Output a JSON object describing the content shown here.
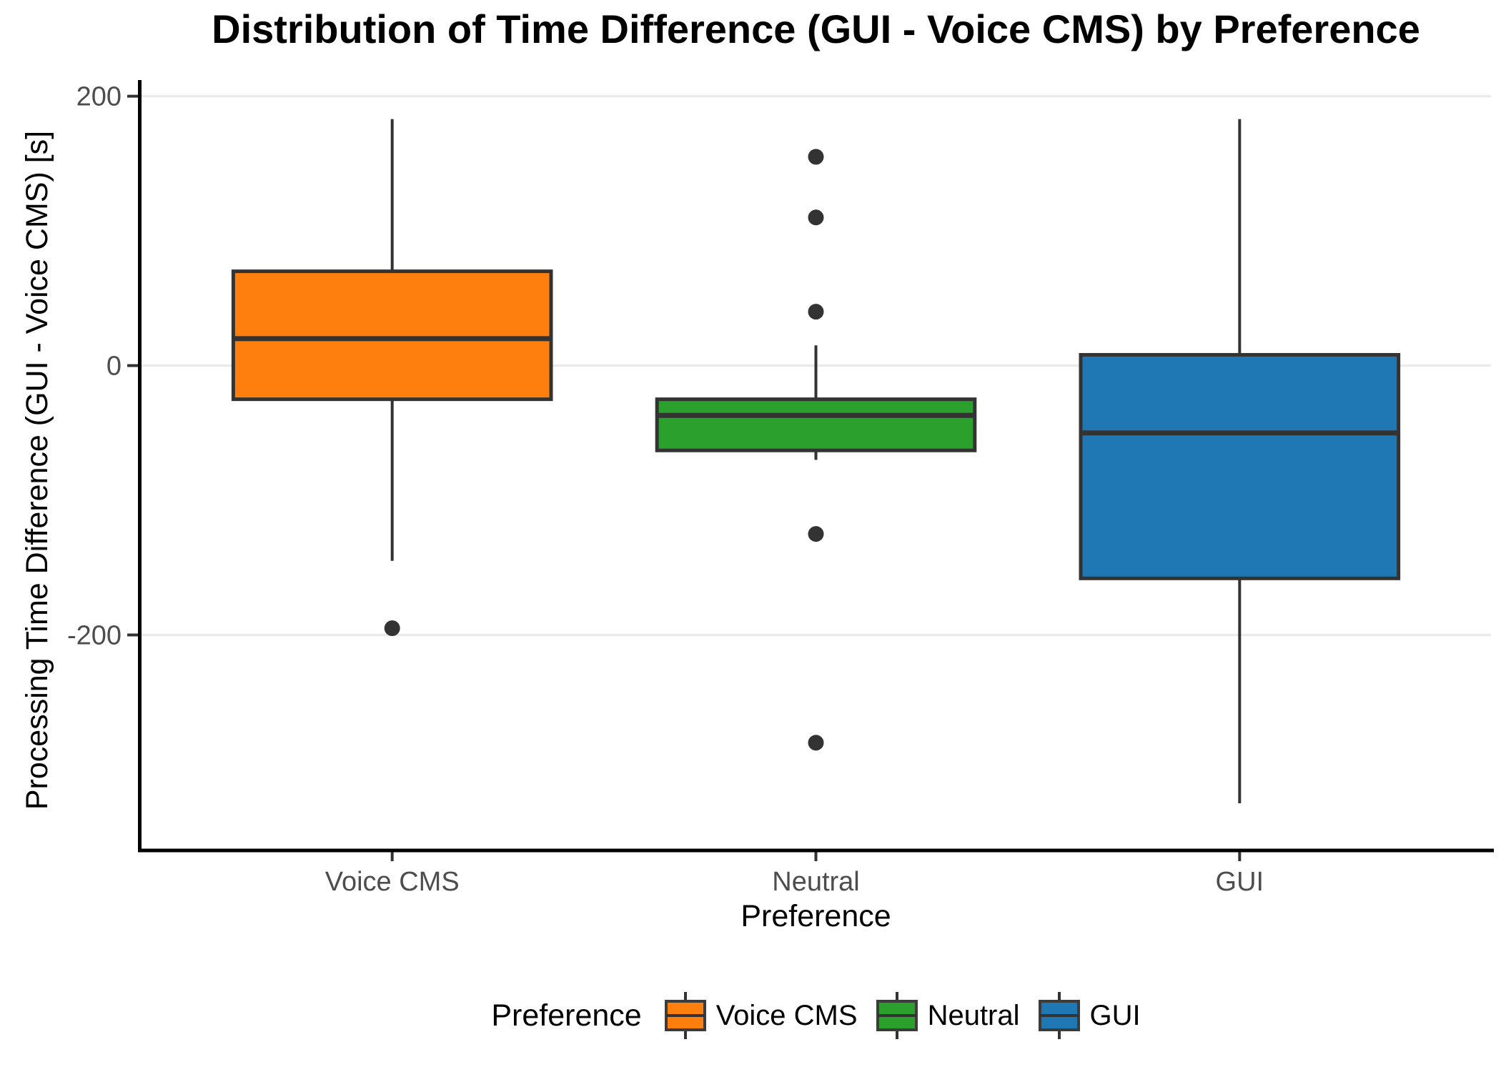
{
  "chart_data": {
    "type": "boxplot",
    "title": "Distribution of Time Difference (GUI - Voice CMS) by Preference",
    "xlabel": "Preference",
    "ylabel": "Processing Time Difference (GUI - Voice CMS) [s]",
    "categories": [
      "Voice CMS",
      "Neutral",
      "GUI"
    ],
    "y_ticks": [
      200,
      0,
      -200
    ],
    "ylim": [
      -360,
      212
    ],
    "grid": "horizontal-only",
    "legend_position": "bottom",
    "legend_title": "Preference",
    "groups": [
      {
        "label": "Voice CMS",
        "color": "#FF7F0E",
        "whisker_low": -145,
        "q1": -25,
        "median": 20,
        "q3": 70,
        "whisker_high": 183,
        "outliers": [
          -195
        ]
      },
      {
        "label": "Neutral",
        "color": "#2CA02C",
        "whisker_low": -70,
        "q1": -63,
        "median": -37,
        "q3": -25,
        "whisker_high": 15,
        "outliers": [
          155,
          110,
          40,
          -125,
          -280
        ]
      },
      {
        "label": "GUI",
        "color": "#1F77B4",
        "whisker_low": -325,
        "q1": -158,
        "median": -50,
        "q3": 8,
        "whisker_high": 183,
        "outliers": []
      }
    ],
    "style": {
      "box_line_color": "#333333",
      "outlier_color": "#333333",
      "gridline_color": "#EBEBEB",
      "axis_line_color": "#000000",
      "tick_label_color": "#4D4D4D",
      "legend_key_border": "#3C3C3C",
      "background": "#FFFFFF"
    }
  }
}
